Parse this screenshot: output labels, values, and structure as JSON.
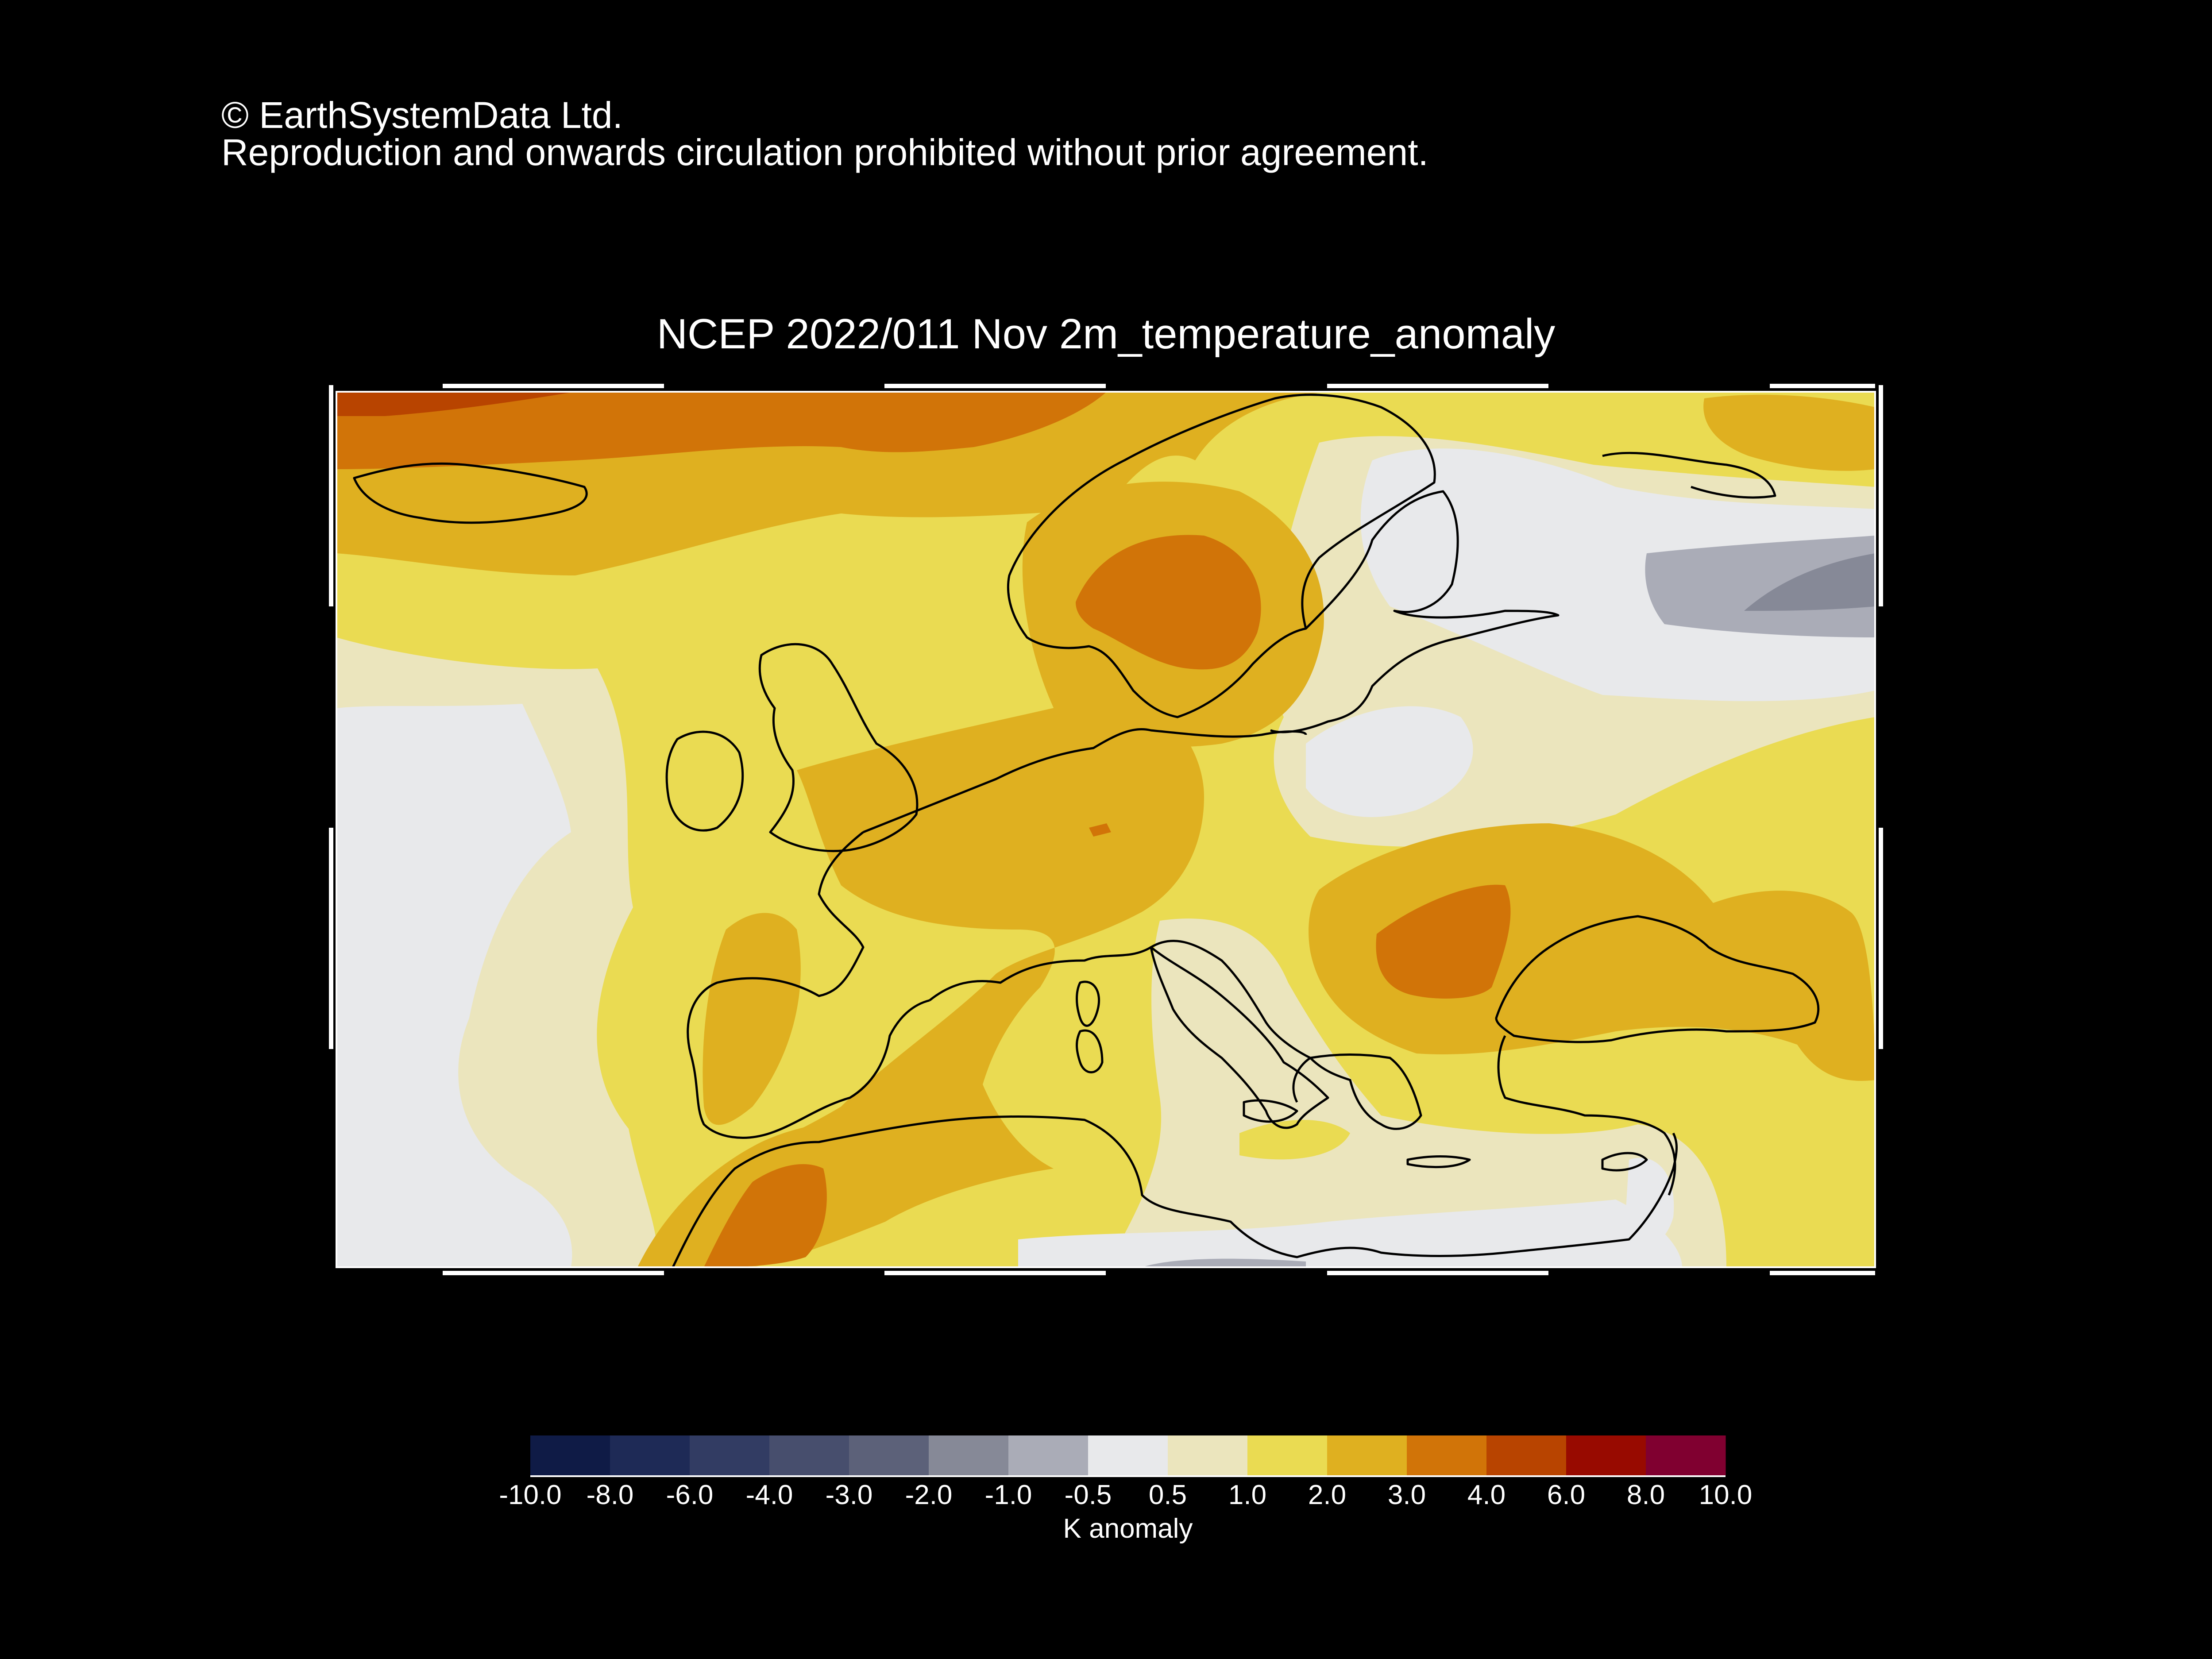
{
  "copyright": {
    "line1": "© EarthSystemData Ltd.",
    "line2": "Reproduction and onwards circulation prohibited without prior agreement."
  },
  "map": {
    "title": "NCEP 2022/011 Nov 2m_temperature_anomaly",
    "region": "Europe",
    "variable": "2m temperature anomaly"
  },
  "colorbar": {
    "unit_label": "K anomaly",
    "ticks": [
      "-10.0",
      "-8.0",
      "-6.0",
      "-4.0",
      "-3.0",
      "-2.0",
      "-1.0",
      "-0.5",
      "0.5",
      "1.0",
      "2.0",
      "3.0",
      "4.0",
      "6.0",
      "8.0",
      "10.0"
    ],
    "colors": [
      "#0f1b46",
      "#1e2a56",
      "#323c63",
      "#474e6d",
      "#5c6179",
      "#868997",
      "#aaacb7",
      "#e8e9eb",
      "#ebe5bd",
      "#eadb52",
      "#dfb020",
      "#d17408",
      "#b84400",
      "#980a00",
      "#800030"
    ]
  }
}
